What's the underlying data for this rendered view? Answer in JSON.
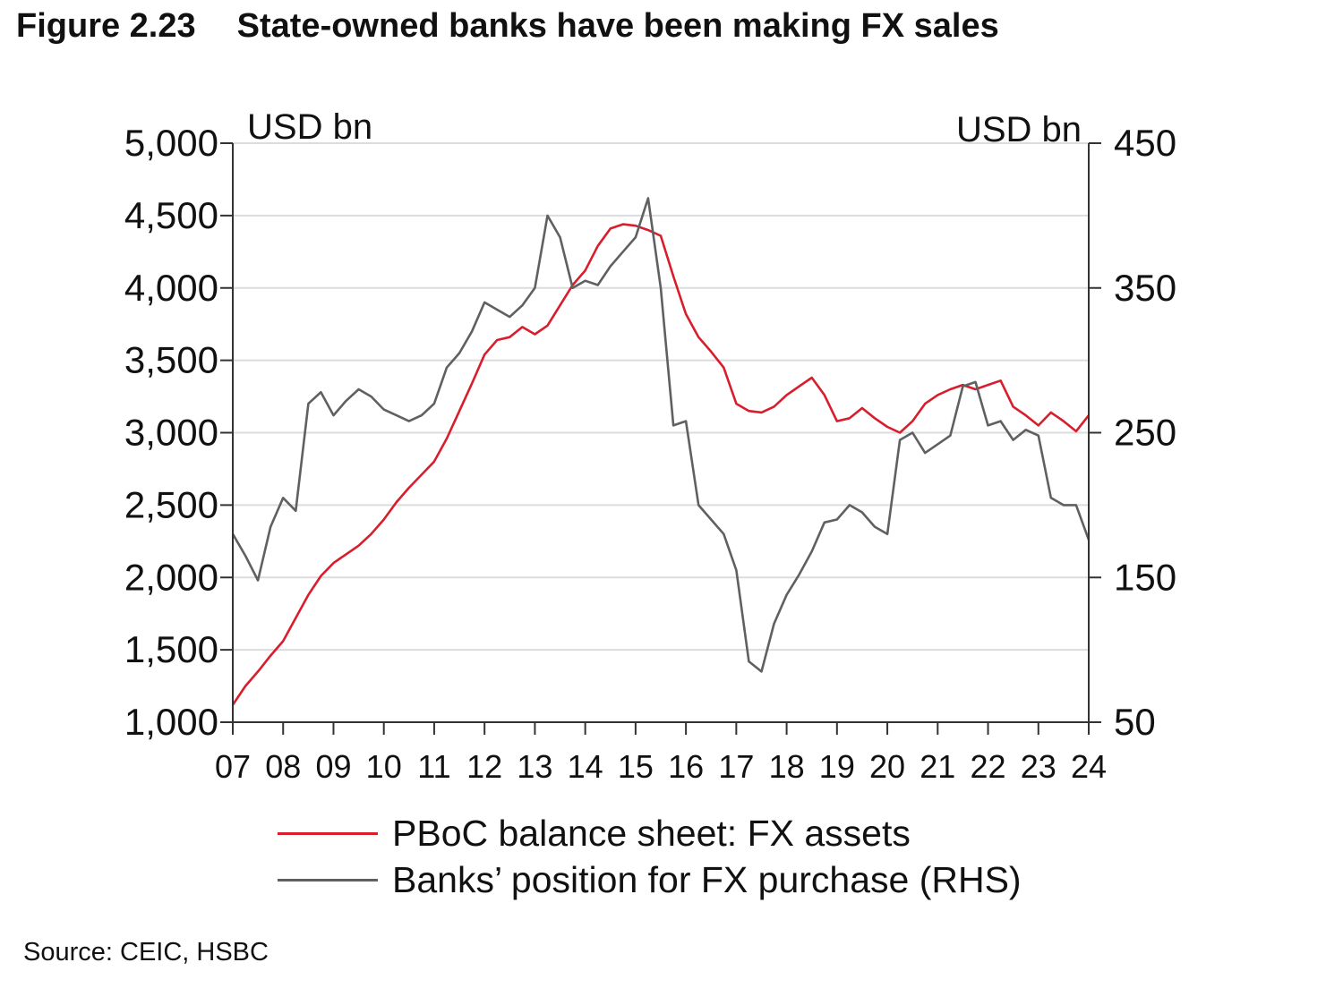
{
  "title": {
    "figure_number": "Figure 2.23",
    "text": "State-owned banks have been making FX sales"
  },
  "source": "Source: CEIC, HSBC",
  "colors": {
    "pboc": "#d81e2c",
    "banks": "#5f6062",
    "grid": "#dcdcdc",
    "axis": "#333333"
  },
  "chart_data": {
    "type": "line",
    "left_axis": {
      "unit_label": "USD bn",
      "range": [
        1000,
        5000
      ],
      "ticks": [
        1000,
        1500,
        2000,
        2500,
        3000,
        3500,
        4000,
        4500,
        5000
      ],
      "tick_labels": [
        "1,000",
        "1,500",
        "2,000",
        "2,500",
        "3,000",
        "3,500",
        "4,000",
        "4,500",
        "5,000"
      ]
    },
    "right_axis": {
      "unit_label": "USD bn",
      "range": [
        50,
        450
      ],
      "ticks": [
        50,
        150,
        250,
        350,
        450
      ],
      "tick_labels": [
        "50",
        "150",
        "250",
        "350",
        "450"
      ]
    },
    "x_axis": {
      "range": [
        2007.0,
        2024.0
      ],
      "tick_labels": [
        "07",
        "08",
        "09",
        "10",
        "11",
        "12",
        "13",
        "14",
        "15",
        "16",
        "17",
        "18",
        "19",
        "20",
        "21",
        "22",
        "23",
        "24"
      ]
    },
    "grid": "horizontal",
    "legend_position": "bottom",
    "series": [
      {
        "name": "PBoC balance sheet: FX assets",
        "axis": "left",
        "color": "#d81e2c",
        "points": [
          [
            2007.0,
            1120
          ],
          [
            2007.25,
            1250
          ],
          [
            2007.5,
            1350
          ],
          [
            2007.75,
            1460
          ],
          [
            2008.0,
            1560
          ],
          [
            2008.25,
            1720
          ],
          [
            2008.5,
            1880
          ],
          [
            2008.75,
            2010
          ],
          [
            2009.0,
            2100
          ],
          [
            2009.25,
            2160
          ],
          [
            2009.5,
            2220
          ],
          [
            2009.75,
            2300
          ],
          [
            2010.0,
            2400
          ],
          [
            2010.25,
            2520
          ],
          [
            2010.5,
            2620
          ],
          [
            2010.75,
            2710
          ],
          [
            2011.0,
            2800
          ],
          [
            2011.25,
            2960
          ],
          [
            2011.5,
            3150
          ],
          [
            2011.75,
            3340
          ],
          [
            2012.0,
            3540
          ],
          [
            2012.25,
            3640
          ],
          [
            2012.5,
            3660
          ],
          [
            2012.75,
            3730
          ],
          [
            2013.0,
            3680
          ],
          [
            2013.25,
            3740
          ],
          [
            2013.5,
            3880
          ],
          [
            2013.75,
            4020
          ],
          [
            2014.0,
            4120
          ],
          [
            2014.25,
            4290
          ],
          [
            2014.5,
            4410
          ],
          [
            2014.75,
            4440
          ],
          [
            2015.0,
            4430
          ],
          [
            2015.25,
            4400
          ],
          [
            2015.5,
            4360
          ],
          [
            2015.75,
            4080
          ],
          [
            2016.0,
            3820
          ],
          [
            2016.25,
            3660
          ],
          [
            2016.5,
            3560
          ],
          [
            2016.75,
            3450
          ],
          [
            2017.0,
            3200
          ],
          [
            2017.25,
            3150
          ],
          [
            2017.5,
            3140
          ],
          [
            2017.75,
            3180
          ],
          [
            2018.0,
            3260
          ],
          [
            2018.25,
            3320
          ],
          [
            2018.5,
            3380
          ],
          [
            2018.75,
            3260
          ],
          [
            2019.0,
            3080
          ],
          [
            2019.25,
            3100
          ],
          [
            2019.5,
            3170
          ],
          [
            2019.75,
            3100
          ],
          [
            2020.0,
            3040
          ],
          [
            2020.25,
            3000
          ],
          [
            2020.5,
            3080
          ],
          [
            2020.75,
            3200
          ],
          [
            2021.0,
            3260
          ],
          [
            2021.25,
            3300
          ],
          [
            2021.5,
            3330
          ],
          [
            2021.75,
            3300
          ],
          [
            2022.0,
            3330
          ],
          [
            2022.25,
            3360
          ],
          [
            2022.5,
            3180
          ],
          [
            2022.75,
            3120
          ],
          [
            2023.0,
            3050
          ],
          [
            2023.25,
            3140
          ],
          [
            2023.5,
            3080
          ],
          [
            2023.75,
            3010
          ],
          [
            2024.0,
            3120
          ]
        ]
      },
      {
        "name": "Banks’ position for FX purchase (RHS)",
        "axis": "right",
        "color": "#5f6062",
        "points": [
          [
            2007.0,
            180
          ],
          [
            2007.25,
            165
          ],
          [
            2007.5,
            148
          ],
          [
            2007.75,
            185
          ],
          [
            2008.0,
            205
          ],
          [
            2008.25,
            196
          ],
          [
            2008.5,
            270
          ],
          [
            2008.75,
            278
          ],
          [
            2009.0,
            262
          ],
          [
            2009.25,
            272
          ],
          [
            2009.5,
            280
          ],
          [
            2009.75,
            275
          ],
          [
            2010.0,
            266
          ],
          [
            2010.25,
            262
          ],
          [
            2010.5,
            258
          ],
          [
            2010.75,
            262
          ],
          [
            2011.0,
            270
          ],
          [
            2011.25,
            295
          ],
          [
            2011.5,
            305
          ],
          [
            2011.75,
            320
          ],
          [
            2012.0,
            340
          ],
          [
            2012.25,
            335
          ],
          [
            2012.5,
            330
          ],
          [
            2012.75,
            338
          ],
          [
            2013.0,
            350
          ],
          [
            2013.25,
            400
          ],
          [
            2013.5,
            385
          ],
          [
            2013.75,
            350
          ],
          [
            2014.0,
            355
          ],
          [
            2014.25,
            352
          ],
          [
            2014.5,
            365
          ],
          [
            2014.75,
            375
          ],
          [
            2015.0,
            385
          ],
          [
            2015.25,
            412
          ],
          [
            2015.5,
            350
          ],
          [
            2015.75,
            255
          ],
          [
            2016.0,
            258
          ],
          [
            2016.25,
            200
          ],
          [
            2016.5,
            190
          ],
          [
            2016.75,
            180
          ],
          [
            2017.0,
            155
          ],
          [
            2017.25,
            92
          ],
          [
            2017.5,
            85
          ],
          [
            2017.75,
            118
          ],
          [
            2018.0,
            138
          ],
          [
            2018.25,
            152
          ],
          [
            2018.5,
            168
          ],
          [
            2018.75,
            188
          ],
          [
            2019.0,
            190
          ],
          [
            2019.25,
            200
          ],
          [
            2019.5,
            195
          ],
          [
            2019.75,
            185
          ],
          [
            2020.0,
            180
          ],
          [
            2020.25,
            245
          ],
          [
            2020.5,
            250
          ],
          [
            2020.75,
            236
          ],
          [
            2021.0,
            242
          ],
          [
            2021.25,
            248
          ],
          [
            2021.5,
            282
          ],
          [
            2021.75,
            285
          ],
          [
            2022.0,
            255
          ],
          [
            2022.25,
            258
          ],
          [
            2022.5,
            245
          ],
          [
            2022.75,
            252
          ],
          [
            2023.0,
            248
          ],
          [
            2023.25,
            205
          ],
          [
            2023.5,
            200
          ],
          [
            2023.75,
            200
          ],
          [
            2024.0,
            176
          ]
        ]
      }
    ]
  }
}
